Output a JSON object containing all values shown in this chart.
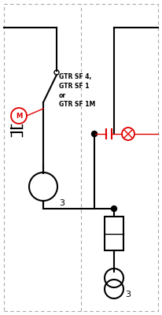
{
  "bg_color": "#ffffff",
  "line_color": "#000000",
  "red_color": "#e00000",
  "gray_color": "#aaaaaa",
  "lw": 1.5,
  "thin_lw": 1.0,
  "fig_width": 2.06,
  "fig_height": 4.0,
  "dpi": 100,
  "title_text": "GTR SF 4,\nGTR SF 1\nor\nGTR SF 1M",
  "q3_label": "3"
}
